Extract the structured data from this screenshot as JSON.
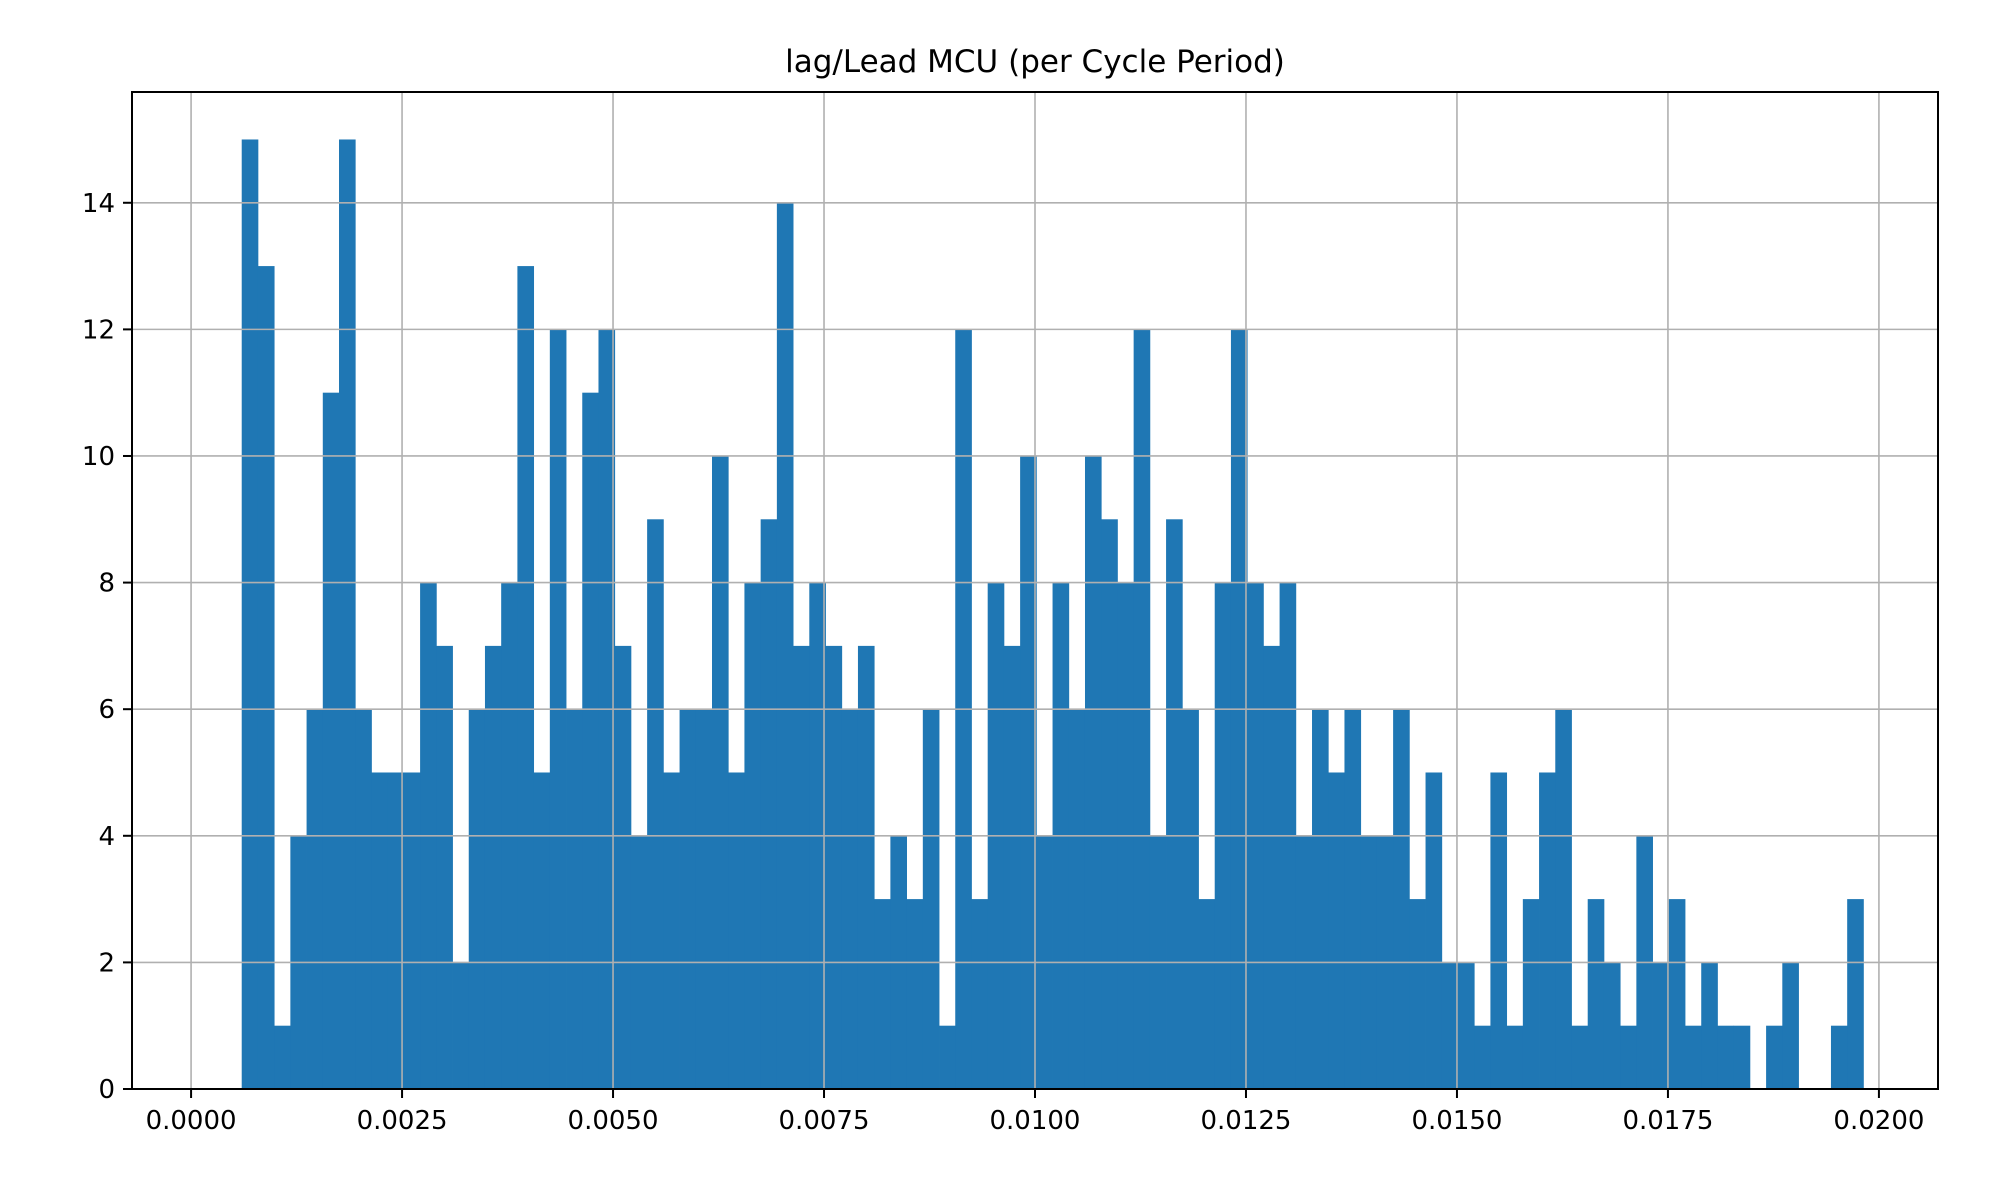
{
  "chart_data": {
    "type": "bar",
    "title": "lag/Lead MCU (per Cycle Period)",
    "xlabel": "",
    "ylabel": "",
    "xlim": [
      -0.0007,
      0.0207
    ],
    "ylim": [
      0,
      15.75
    ],
    "grid": true,
    "bar_color": "#1f77b4",
    "bins": {
      "start": 0.0006,
      "width": 0.00019216,
      "values": [
        15,
        13,
        1,
        4,
        6,
        11,
        15,
        6,
        5,
        5,
        5,
        8,
        7,
        2,
        6,
        7,
        8,
        13,
        5,
        12,
        6,
        11,
        12,
        7,
        4,
        9,
        5,
        6,
        6,
        10,
        5,
        8,
        9,
        14,
        7,
        8,
        7,
        6,
        7,
        3,
        4,
        3,
        6,
        1,
        12,
        3,
        8,
        7,
        10,
        4,
        8,
        6,
        10,
        9,
        8,
        12,
        4,
        9,
        6,
        3,
        8,
        12,
        8,
        7,
        8,
        4,
        6,
        5,
        6,
        4,
        4,
        6,
        3,
        5,
        2,
        2,
        1,
        5,
        1,
        3,
        5,
        6,
        1,
        3,
        2,
        1,
        4,
        2,
        3,
        1,
        2,
        1,
        1,
        0,
        1,
        2,
        0,
        0,
        1,
        3
      ]
    },
    "x_ticks": [
      {
        "value": 0.0,
        "label": "0.0000"
      },
      {
        "value": 0.0025,
        "label": "0.0025"
      },
      {
        "value": 0.005,
        "label": "0.0050"
      },
      {
        "value": 0.0075,
        "label": "0.0075"
      },
      {
        "value": 0.01,
        "label": "0.0100"
      },
      {
        "value": 0.0125,
        "label": "0.0125"
      },
      {
        "value": 0.015,
        "label": "0.0150"
      },
      {
        "value": 0.0175,
        "label": "0.0175"
      },
      {
        "value": 0.02,
        "label": "0.0200"
      }
    ],
    "y_ticks": [
      {
        "value": 0,
        "label": "0"
      },
      {
        "value": 2,
        "label": "2"
      },
      {
        "value": 4,
        "label": "4"
      },
      {
        "value": 6,
        "label": "6"
      },
      {
        "value": 8,
        "label": "8"
      },
      {
        "value": 10,
        "label": "10"
      },
      {
        "value": 12,
        "label": "12"
      },
      {
        "value": 14,
        "label": "14"
      }
    ]
  }
}
